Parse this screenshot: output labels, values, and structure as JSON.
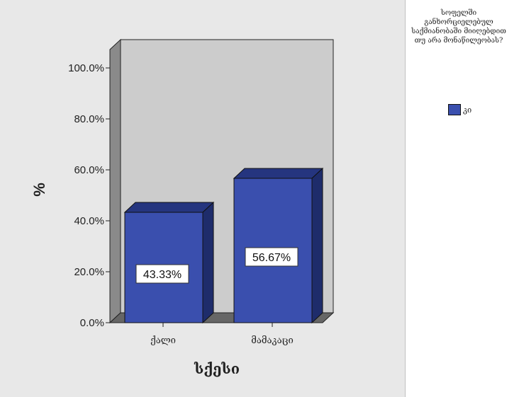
{
  "chart_data": {
    "type": "bar",
    "style": "3d",
    "title": "",
    "xlabel": "სქესი",
    "ylabel": "%",
    "categories": [
      "ქალი",
      "მამაკაცი"
    ],
    "series": [
      {
        "name": "კი",
        "values": [
          43.33,
          56.67
        ],
        "data_labels": [
          "43.33%",
          "56.67%"
        ]
      }
    ],
    "ylim": [
      0,
      100
    ],
    "yticks": [
      0,
      20,
      40,
      60,
      80,
      100
    ],
    "ytick_labels": [
      "0.0%",
      "20.0%",
      "40.0%",
      "60.0%",
      "80.0%",
      "100.0%"
    ],
    "grid": false,
    "legend_position": "right",
    "legend_title": "სოფელში განხორციელებულ საქმიანობაში მიიღებდით თუ არა მონაწილეობას?",
    "colors": {
      "bar_front": "#3a4fae",
      "bar_top": "#25357f",
      "bar_side": "#1e2c6b",
      "back_wall": "#cccccc",
      "side_wall": "#8a8a8a",
      "floor": "#666666",
      "frame": "#e8e8e8"
    }
  }
}
